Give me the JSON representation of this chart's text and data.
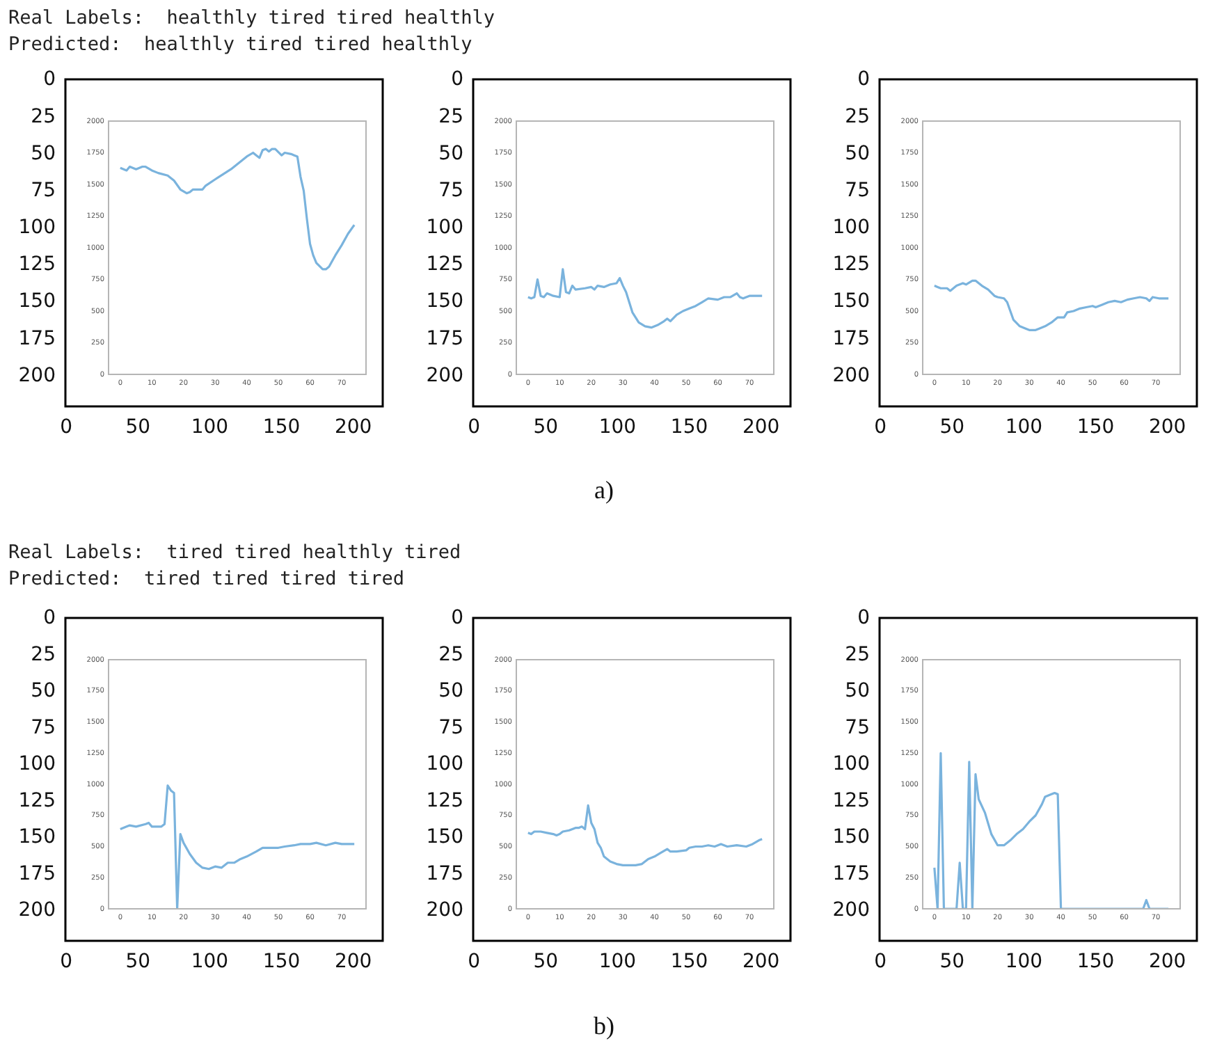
{
  "chart_data": [
    {
      "type": "other",
      "title": "Real Labels:  healthly tired tired healthly",
      "subtitle": "Predicted:  healthly tired tired healthly",
      "annotations": [
        "a)"
      ]
    },
    {
      "type": "line",
      "x2lim": [
        -0.5,
        220.5
      ],
      "y2lim": [
        220.5,
        -0.5
      ],
      "x2ticks": [
        0,
        50,
        100,
        150,
        200
      ],
      "y2ticks": [
        0,
        25,
        50,
        75,
        100,
        125,
        150,
        175,
        200
      ],
      "xlim": [
        -3.7,
        77.7
      ],
      "ylim": [
        0,
        2000
      ],
      "xticks": [
        0,
        10,
        20,
        30,
        40,
        50,
        60,
        70
      ],
      "yticks": [
        0,
        250,
        500,
        750,
        1000,
        1250,
        1500,
        1750,
        2000
      ],
      "series": [
        {
          "color": "#7ab3dd",
          "x": [
            0,
            2,
            3,
            5,
            7,
            8,
            10,
            12,
            15,
            17,
            19,
            21,
            22,
            23,
            26,
            27,
            30,
            35,
            40,
            42,
            43,
            44,
            45,
            46,
            47,
            48,
            49,
            51,
            52,
            54,
            55,
            56,
            57,
            58,
            59,
            60,
            61,
            62,
            64,
            65,
            66,
            68,
            70,
            72,
            74
          ],
          "values": [
            1630,
            1610,
            1640,
            1620,
            1640,
            1640,
            1610,
            1590,
            1570,
            1530,
            1460,
            1430,
            1440,
            1460,
            1460,
            1490,
            1540,
            1620,
            1720,
            1750,
            1730,
            1710,
            1770,
            1780,
            1760,
            1780,
            1780,
            1730,
            1750,
            1740,
            1730,
            1720,
            1560,
            1450,
            1230,
            1030,
            940,
            880,
            830,
            830,
            850,
            940,
            1020,
            1110,
            1180
          ]
        }
      ]
    },
    {
      "type": "line",
      "x2lim": [
        -0.5,
        220.5
      ],
      "y2lim": [
        220.5,
        -0.5
      ],
      "x2ticks": [
        0,
        50,
        100,
        150,
        200
      ],
      "y2ticks": [
        0,
        25,
        50,
        75,
        100,
        125,
        150,
        175,
        200
      ],
      "xlim": [
        -3.7,
        77.7
      ],
      "ylim": [
        0,
        2000
      ],
      "xticks": [
        0,
        10,
        20,
        30,
        40,
        50,
        60,
        70
      ],
      "yticks": [
        0,
        250,
        500,
        750,
        1000,
        1250,
        1500,
        1750,
        2000
      ],
      "series": [
        {
          "color": "#7ab3dd",
          "x": [
            0,
            1,
            2,
            3,
            4,
            5,
            6,
            8,
            10,
            11,
            12,
            13,
            14,
            15,
            18,
            20,
            21,
            22,
            24,
            26,
            28,
            29,
            30,
            31,
            33,
            35,
            37,
            39,
            41,
            43,
            44,
            45,
            47,
            49,
            51,
            53,
            55,
            57,
            60,
            62,
            64,
            66,
            67,
            68,
            70,
            72,
            74
          ],
          "values": [
            610,
            600,
            610,
            750,
            620,
            610,
            640,
            620,
            610,
            830,
            650,
            640,
            700,
            670,
            680,
            690,
            670,
            700,
            690,
            710,
            720,
            760,
            700,
            650,
            490,
            410,
            380,
            370,
            390,
            420,
            440,
            420,
            470,
            500,
            520,
            540,
            570,
            600,
            590,
            610,
            610,
            640,
            610,
            600,
            620,
            620,
            620
          ]
        }
      ]
    },
    {
      "type": "line",
      "x2lim": [
        -0.5,
        220.5
      ],
      "y2lim": [
        220.5,
        -0.5
      ],
      "x2ticks": [
        0,
        50,
        100,
        150,
        200
      ],
      "y2ticks": [
        0,
        25,
        50,
        75,
        100,
        125,
        150,
        175,
        200
      ],
      "xlim": [
        -3.7,
        77.7
      ],
      "ylim": [
        0,
        2000
      ],
      "xticks": [
        0,
        10,
        20,
        30,
        40,
        50,
        60,
        70
      ],
      "yticks": [
        0,
        250,
        500,
        750,
        1000,
        1250,
        1500,
        1750,
        2000
      ],
      "series": [
        {
          "color": "#7ab3dd",
          "x": [
            0,
            1,
            2,
            4,
            5,
            7,
            9,
            10,
            12,
            13,
            15,
            17,
            19,
            20,
            22,
            23,
            24,
            25,
            27,
            29,
            30,
            32,
            33,
            35,
            37,
            39,
            41,
            42,
            44,
            46,
            48,
            50,
            51,
            53,
            55,
            57,
            59,
            61,
            63,
            65,
            67,
            68,
            69,
            71,
            74
          ],
          "values": [
            700,
            690,
            680,
            680,
            660,
            700,
            720,
            710,
            740,
            740,
            700,
            670,
            620,
            610,
            600,
            570,
            500,
            430,
            380,
            360,
            350,
            350,
            360,
            380,
            410,
            450,
            450,
            490,
            500,
            520,
            530,
            540,
            530,
            550,
            570,
            580,
            570,
            590,
            600,
            610,
            600,
            580,
            610,
            600,
            600
          ]
        }
      ]
    },
    {
      "type": "other",
      "title": "Real Labels:  tired tired healthly tired",
      "subtitle": "Predicted:  tired tired tired tired",
      "annotations": [
        "b)"
      ]
    },
    {
      "type": "line",
      "x2lim": [
        -0.5,
        220.5
      ],
      "y2lim": [
        220.5,
        -0.5
      ],
      "x2ticks": [
        0,
        50,
        100,
        150,
        200
      ],
      "y2ticks": [
        0,
        25,
        50,
        75,
        100,
        125,
        150,
        175,
        200
      ],
      "xlim": [
        -3.7,
        77.7
      ],
      "ylim": [
        0,
        2000
      ],
      "xticks": [
        0,
        10,
        20,
        30,
        40,
        50,
        60,
        70
      ],
      "yticks": [
        0,
        250,
        500,
        750,
        1000,
        1250,
        1500,
        1750,
        2000
      ],
      "series": [
        {
          "color": "#7ab3dd",
          "x": [
            0,
            2,
            3,
            5,
            8,
            9,
            10,
            13,
            14,
            15,
            16,
            17,
            18,
            19,
            20,
            22,
            24,
            26,
            28,
            30,
            32,
            34,
            36,
            38,
            40,
            43,
            45,
            48,
            50,
            52,
            55,
            57,
            60,
            62,
            65,
            68,
            70,
            72,
            74
          ],
          "values": [
            640,
            660,
            670,
            660,
            680,
            690,
            660,
            660,
            680,
            990,
            950,
            930,
            0,
            600,
            530,
            440,
            370,
            330,
            320,
            340,
            330,
            370,
            370,
            400,
            420,
            460,
            490,
            490,
            490,
            500,
            510,
            520,
            520,
            530,
            510,
            530,
            520,
            520,
            520
          ]
        }
      ]
    },
    {
      "type": "line",
      "x2lim": [
        -0.5,
        220.5
      ],
      "y2lim": [
        220.5,
        -0.5
      ],
      "x2ticks": [
        0,
        50,
        100,
        150,
        200
      ],
      "y2ticks": [
        0,
        25,
        50,
        75,
        100,
        125,
        150,
        175,
        200
      ],
      "xlim": [
        -3.7,
        77.7
      ],
      "ylim": [
        0,
        2000
      ],
      "xticks": [
        0,
        10,
        20,
        30,
        40,
        50,
        60,
        70
      ],
      "yticks": [
        0,
        250,
        500,
        750,
        1000,
        1250,
        1500,
        1750,
        2000
      ],
      "series": [
        {
          "color": "#7ab3dd",
          "x": [
            0,
            1,
            2,
            4,
            6,
            8,
            9,
            10,
            11,
            13,
            15,
            16,
            17,
            18,
            19,
            20,
            21,
            22,
            23,
            24,
            26,
            28,
            30,
            32,
            34,
            36,
            37,
            38,
            40,
            42,
            44,
            45,
            47,
            50,
            51,
            53,
            55,
            57,
            59,
            61,
            63,
            66,
            69,
            71,
            73,
            74
          ],
          "values": [
            610,
            600,
            620,
            620,
            610,
            600,
            590,
            600,
            620,
            630,
            650,
            650,
            660,
            640,
            830,
            690,
            640,
            530,
            490,
            420,
            380,
            360,
            350,
            350,
            350,
            360,
            380,
            400,
            420,
            450,
            480,
            460,
            460,
            470,
            490,
            500,
            500,
            510,
            500,
            520,
            500,
            510,
            500,
            520,
            550,
            560
          ]
        }
      ]
    },
    {
      "type": "line",
      "x2lim": [
        -0.5,
        220.5
      ],
      "y2lim": [
        220.5,
        -0.5
      ],
      "x2ticks": [
        0,
        50,
        100,
        150,
        200
      ],
      "y2ticks": [
        0,
        25,
        50,
        75,
        100,
        125,
        150,
        175,
        200
      ],
      "xlim": [
        -3.7,
        77.7
      ],
      "ylim": [
        0,
        2000
      ],
      "xticks": [
        0,
        10,
        20,
        30,
        40,
        50,
        60,
        70
      ],
      "yticks": [
        0,
        250,
        500,
        750,
        1000,
        1250,
        1500,
        1750,
        2000
      ],
      "series": [
        {
          "color": "#7ab3dd",
          "x": [
            0,
            1,
            2,
            3,
            4,
            7,
            8,
            9,
            10,
            11,
            12,
            13,
            14,
            16,
            18,
            20,
            22,
            24,
            26,
            28,
            30,
            32,
            34,
            35,
            37,
            38,
            39,
            40,
            45,
            60,
            66,
            67,
            68,
            74
          ],
          "values": [
            330,
            0,
            1250,
            0,
            0,
            0,
            370,
            0,
            0,
            1180,
            0,
            1080,
            880,
            770,
            600,
            510,
            510,
            550,
            600,
            640,
            700,
            750,
            840,
            900,
            920,
            930,
            920,
            0,
            0,
            0,
            0,
            70,
            0,
            0
          ]
        }
      ]
    }
  ]
}
